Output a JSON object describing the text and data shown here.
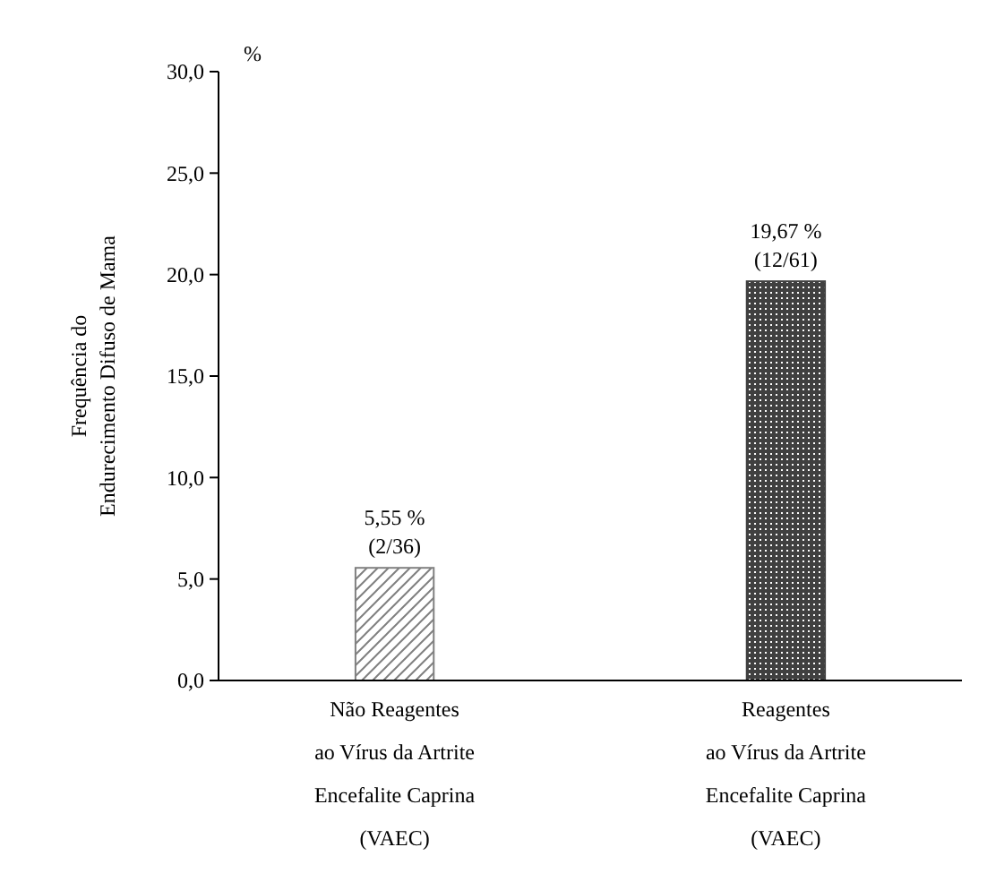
{
  "chart_data": {
    "type": "bar",
    "ylabel": "Frequência do\nEndurecimento Difuso de Mama",
    "annotations": [
      "%"
    ],
    "categories": [
      "Não Reagentes\nao Vírus da Artrite\nEncefalite Caprina\n(VAEC)",
      "Reagentes\nao Vírus da Artrite\nEncefalite Caprina\n(VAEC)"
    ],
    "values": [
      5.55,
      19.67
    ],
    "value_labels": [
      "5,55 %\n(2/36)",
      "19,67 %\n(12/61)"
    ],
    "colors": [
      "#808080",
      "#404040"
    ],
    "ylim": [
      0,
      30
    ],
    "yticks": [
      {
        "value": 0,
        "label": "0,0"
      },
      {
        "value": 5,
        "label": "5,0"
      },
      {
        "value": 10,
        "label": "10,0"
      },
      {
        "value": 15,
        "label": "15,0"
      },
      {
        "value": 20,
        "label": "20,0"
      },
      {
        "value": 25,
        "label": "25,0"
      },
      {
        "value": 30,
        "label": "30,0"
      }
    ],
    "grid": false
  }
}
